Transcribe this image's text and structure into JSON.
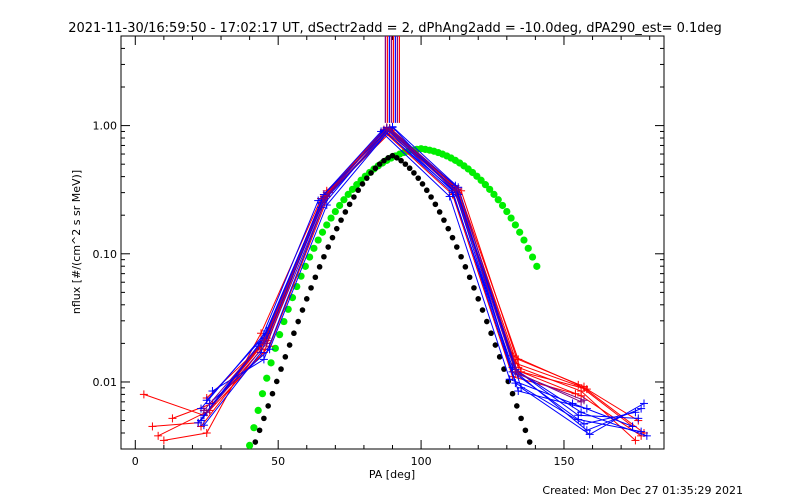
{
  "chart_data": {
    "type": "scatter",
    "title": "2021-11-30/16:59:50 - 17:02:17 UT, dSectr2add = 2, dPhAng2add = -10.0deg, dPA290_est=  0.1deg",
    "xlabel": "PA [deg]",
    "ylabel": "nflux [#/(cm^2 s sr MeV)]",
    "xlim": [
      -5,
      185
    ],
    "ylim": [
      0.003,
      5.0
    ],
    "yscale": "log",
    "x_ticks": [
      0,
      50,
      100,
      150
    ],
    "x_tick_labels": [
      "0",
      "50",
      "100",
      "150"
    ],
    "y_ticks": [
      0.01,
      0.1,
      1.0
    ],
    "y_tick_labels": [
      "0.01",
      "0.10",
      "1.00"
    ],
    "grid": false,
    "footer": "Created: Mon Dec 27 01:35:29 2021",
    "colors": {
      "red": "#ff0000",
      "blue": "#0000ff",
      "green": "#00ee00",
      "black": "#000000",
      "purple": "#800080"
    },
    "series": [
      {
        "color": "red",
        "x": [
          3,
          24,
          45,
          66,
          88,
          112,
          133,
          157,
          178
        ],
        "y": [
          0.008,
          0.0055,
          0.02,
          0.28,
          0.95,
          0.32,
          0.014,
          0.009,
          0.004
        ]
      },
      {
        "color": "red",
        "x": [
          6,
          22,
          46,
          67,
          89,
          113,
          134,
          156,
          175
        ],
        "y": [
          0.0045,
          0.0048,
          0.022,
          0.3,
          0.96,
          0.3,
          0.013,
          0.0085,
          0.0035
        ]
      },
      {
        "color": "red",
        "x": [
          10,
          25,
          44,
          65,
          87,
          111,
          132,
          155,
          174
        ],
        "y": [
          0.0035,
          0.004,
          0.024,
          0.27,
          0.93,
          0.34,
          0.016,
          0.0095,
          0.0045
        ]
      },
      {
        "color": "red",
        "x": [
          13,
          27,
          47,
          68,
          90,
          114,
          135,
          158,
          176
        ],
        "y": [
          0.0052,
          0.0068,
          0.019,
          0.3,
          0.92,
          0.31,
          0.012,
          0.0088,
          0.005
        ]
      },
      {
        "color": "red",
        "x": [
          8,
          26,
          45,
          66,
          88,
          112,
          133,
          156,
          177
        ],
        "y": [
          0.0038,
          0.006,
          0.017,
          0.29,
          0.97,
          0.33,
          0.0125,
          0.0078,
          0.0038
        ]
      },
      {
        "color": "red",
        "x": [
          25,
          46,
          67,
          89,
          113,
          134,
          157
        ],
        "y": [
          0.0075,
          0.021,
          0.31,
          0.94,
          0.32,
          0.015,
          0.0092
        ]
      },
      {
        "color": "red",
        "x": [
          23,
          44,
          65,
          87,
          111,
          132,
          154
        ],
        "y": [
          0.0045,
          0.018,
          0.26,
          0.9,
          0.29,
          0.011,
          0.0081
        ]
      },
      {
        "color": "blue",
        "x": [
          23,
          44,
          65,
          87,
          111,
          132,
          155,
          176
        ],
        "y": [
          0.005,
          0.02,
          0.25,
          0.92,
          0.3,
          0.013,
          0.0055,
          0.0052
        ]
      },
      {
        "color": "blue",
        "x": [
          24,
          45,
          66,
          88,
          112,
          134,
          158,
          177
        ],
        "y": [
          0.0055,
          0.022,
          0.27,
          0.96,
          0.32,
          0.0115,
          0.0042,
          0.0062
        ]
      },
      {
        "color": "blue",
        "x": [
          26,
          47,
          67,
          90,
          113,
          135,
          159,
          178
        ],
        "y": [
          0.0068,
          0.018,
          0.24,
          0.98,
          0.33,
          0.009,
          0.0039,
          0.0068
        ]
      },
      {
        "color": "blue",
        "x": [
          22,
          43,
          64,
          86,
          110,
          131,
          153,
          174
        ],
        "y": [
          0.0048,
          0.019,
          0.26,
          0.9,
          0.28,
          0.0105,
          0.0068,
          0.0045
        ]
      },
      {
        "color": "blue",
        "x": [
          25,
          46,
          66,
          89,
          112,
          133,
          156,
          179
        ],
        "y": [
          0.0072,
          0.024,
          0.29,
          0.95,
          0.34,
          0.0125,
          0.0058,
          0.0038
        ]
      },
      {
        "color": "blue",
        "x": [
          24,
          44,
          65,
          88,
          111,
          133,
          157,
          175
        ],
        "y": [
          0.0046,
          0.017,
          0.23,
          0.93,
          0.31,
          0.0098,
          0.0047,
          0.0058
        ]
      },
      {
        "color": "blue",
        "x": [
          27,
          45,
          67,
          87,
          113,
          134,
          158
        ],
        "y": [
          0.0085,
          0.015,
          0.28,
          0.91,
          0.29,
          0.0085,
          0.0062
        ]
      },
      {
        "color": "blue",
        "x": [
          23,
          46,
          66,
          90,
          112,
          132,
          155,
          177
        ],
        "y": [
          0.0062,
          0.025,
          0.26,
          0.97,
          0.3,
          0.012,
          0.0051,
          0.0041
        ]
      },
      {
        "color": "purple",
        "x": [
          24,
          45,
          66,
          88,
          112,
          133,
          156
        ],
        "y": [
          0.006,
          0.021,
          0.27,
          0.95,
          0.31,
          0.012,
          0.007
        ]
      },
      {
        "color": "purple",
        "x": [
          25,
          46,
          67,
          89,
          113,
          134,
          157
        ],
        "y": [
          0.0058,
          0.02,
          0.28,
          0.94,
          0.32,
          0.0115,
          0.0072
        ]
      }
    ],
    "spikes": {
      "x": [
        87.5,
        88.2,
        88.9,
        89.6,
        90.3,
        91.0,
        91.7,
        92.4
      ],
      "y_bottom": 1.05,
      "colors": [
        "purple",
        "red",
        "blue",
        "purple",
        "red",
        "blue",
        "purple",
        "red"
      ]
    },
    "fits": {
      "green": {
        "x": [
          40,
          41.5,
          43,
          44.5,
          46,
          47.5,
          49,
          50.5,
          52,
          53.5,
          55,
          56.5,
          58,
          59.5,
          61,
          62.5,
          64,
          65.5,
          67,
          68.5,
          70,
          71.5,
          73,
          74.5,
          76,
          77.5,
          79,
          80.5,
          82,
          83.5,
          85,
          86.5,
          88,
          89.5,
          91,
          92.5,
          94,
          95.5,
          97,
          98.5,
          100,
          101.5,
          103,
          104.5,
          106,
          107.5,
          109,
          110.5,
          112,
          113.5,
          115,
          116.5,
          118,
          119.5,
          121,
          122.5,
          124,
          125.5,
          127,
          128.5,
          130,
          131.5,
          133,
          134.5,
          136,
          137.5,
          139,
          140.5
        ],
        "y": [
          0.0032,
          0.0044,
          0.006,
          0.0081,
          0.0107,
          0.0141,
          0.0183,
          0.0234,
          0.0296,
          0.0369,
          0.0455,
          0.0555,
          0.0669,
          0.0798,
          0.0943,
          0.1103,
          0.128,
          0.1472,
          0.1679,
          0.19,
          0.2135,
          0.2382,
          0.264,
          0.2907,
          0.3182,
          0.3462,
          0.3745,
          0.4028,
          0.4309,
          0.4585,
          0.4853,
          0.5111,
          0.5356,
          0.5586,
          0.5798,
          0.599,
          0.616,
          0.631,
          0.643,
          0.652,
          0.66,
          0.652,
          0.643,
          0.631,
          0.616,
          0.599,
          0.5798,
          0.5586,
          0.5356,
          0.5111,
          0.4853,
          0.4585,
          0.4309,
          0.4028,
          0.3745,
          0.3462,
          0.3182,
          0.2907,
          0.264,
          0.2382,
          0.2135,
          0.19,
          0.1679,
          0.1472,
          0.128,
          0.1103,
          0.0943,
          0.0798
        ]
      },
      "black": {
        "x": [
          42,
          43.5,
          45,
          46.5,
          48,
          49.5,
          51,
          52.5,
          54,
          55.5,
          57,
          58.5,
          60,
          61.5,
          63,
          64.5,
          66,
          67.5,
          69,
          70.5,
          72,
          73.5,
          75,
          76.5,
          78,
          79.5,
          81,
          82.5,
          84,
          85.5,
          87,
          88.5,
          90,
          91.5,
          93,
          94.5,
          96,
          97.5,
          99,
          100.5,
          102,
          103.5,
          105,
          106.5,
          108,
          109.5,
          111,
          112.5,
          114,
          115.5,
          117,
          118.5,
          120,
          121.5,
          123,
          124.5,
          126,
          127.5,
          129,
          130.5,
          132,
          133.5,
          135,
          136.5,
          138
        ],
        "y": [
          0.0034,
          0.0042,
          0.0052,
          0.0065,
          0.0081,
          0.0101,
          0.0126,
          0.0157,
          0.0194,
          0.024,
          0.0296,
          0.0364,
          0.0445,
          0.0542,
          0.0656,
          0.0791,
          0.0948,
          0.1129,
          0.1336,
          0.157,
          0.1831,
          0.2119,
          0.2434,
          0.2773,
          0.3132,
          0.3507,
          0.3891,
          0.4276,
          0.4651,
          0.5006,
          0.5328,
          0.5605,
          0.5824,
          0.5605,
          0.5328,
          0.5006,
          0.4651,
          0.4276,
          0.3891,
          0.3507,
          0.3132,
          0.2773,
          0.2434,
          0.2119,
          0.1831,
          0.157,
          0.1336,
          0.1129,
          0.0948,
          0.0791,
          0.0656,
          0.0542,
          0.0445,
          0.0364,
          0.0296,
          0.024,
          0.0194,
          0.0157,
          0.0126,
          0.0101,
          0.0081,
          0.0065,
          0.0052,
          0.0042,
          0.0034
        ]
      }
    }
  }
}
